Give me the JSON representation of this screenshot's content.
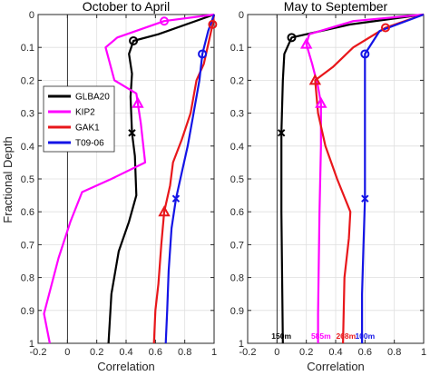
{
  "figure": {
    "ylabel": "Fractional Depth",
    "xlabel": "Correlation"
  },
  "chart_data": [
    {
      "type": "line",
      "title": "October to April",
      "xlabel": "Correlation",
      "ylabel": "Fractional Depth",
      "xlim": [
        -0.2,
        1
      ],
      "ylim": [
        0,
        1
      ],
      "y_reversed": true,
      "xticks": [
        "-0.2",
        "0",
        "0.2",
        "0.4",
        "0.6",
        "0.8",
        "1"
      ],
      "yticks": [
        "0",
        "0.1",
        "0.2",
        "0.3",
        "0.4",
        "0.5",
        "0.6",
        "0.7",
        "0.8",
        "0.9",
        "1"
      ],
      "grid": true,
      "legend": {
        "placement": "left",
        "entries": [
          "GLBA20",
          "KIP2",
          "GAK1",
          "T09-06"
        ]
      },
      "depth_labels": [],
      "series": [
        {
          "name": "GLBA20",
          "color": "#000000",
          "marker": "circle",
          "marker_y": 0.08,
          "marker2": "x",
          "marker2_y": 0.36,
          "points": [
            [
              1,
              0
            ],
            [
              0.62,
              0.06
            ],
            [
              0.45,
              0.08
            ],
            [
              0.42,
              0.12
            ],
            [
              0.44,
              0.18
            ],
            [
              0.43,
              0.25
            ],
            [
              0.44,
              0.36
            ],
            [
              0.46,
              0.43
            ],
            [
              0.47,
              0.55
            ],
            [
              0.42,
              0.63
            ],
            [
              0.35,
              0.72
            ],
            [
              0.3,
              0.85
            ],
            [
              0.28,
              1
            ]
          ]
        },
        {
          "name": "KIP2",
          "color": "#ff00ff",
          "marker": "circle",
          "marker_y": 0.02,
          "marker2": "triangle",
          "marker2_y": 0.27,
          "points": [
            [
              1,
              0
            ],
            [
              0.66,
              0.02
            ],
            [
              0.34,
              0.07
            ],
            [
              0.26,
              0.1
            ],
            [
              0.32,
              0.2
            ],
            [
              0.47,
              0.24
            ],
            [
              0.48,
              0.27
            ],
            [
              0.5,
              0.33
            ],
            [
              0.53,
              0.45
            ],
            [
              0.3,
              0.5
            ],
            [
              0.1,
              0.54
            ],
            [
              0.02,
              0.63
            ],
            [
              -0.06,
              0.74
            ],
            [
              -0.16,
              0.91
            ],
            [
              -0.12,
              1
            ]
          ]
        },
        {
          "name": "GAK1",
          "color": "#e8171b",
          "marker": "circle",
          "marker_y": 0.03,
          "marker2": "triangle",
          "marker2_y": 0.6,
          "points": [
            [
              1,
              0
            ],
            [
              0.99,
              0.03
            ],
            [
              0.93,
              0.15
            ],
            [
              0.88,
              0.2
            ],
            [
              0.84,
              0.3
            ],
            [
              0.78,
              0.38
            ],
            [
              0.72,
              0.45
            ],
            [
              0.7,
              0.52
            ],
            [
              0.66,
              0.6
            ],
            [
              0.64,
              0.7
            ],
            [
              0.62,
              0.82
            ],
            [
              0.6,
              0.9
            ],
            [
              0.59,
              1
            ]
          ]
        },
        {
          "name": "T09-06",
          "color": "#1414e6",
          "marker": "circle",
          "marker_y": 0.12,
          "marker2": "x",
          "marker2_y": 0.56,
          "points": [
            [
              1,
              0
            ],
            [
              0.96,
              0.05
            ],
            [
              0.92,
              0.12
            ],
            [
              0.9,
              0.2
            ],
            [
              0.86,
              0.3
            ],
            [
              0.82,
              0.4
            ],
            [
              0.77,
              0.5
            ],
            [
              0.74,
              0.56
            ],
            [
              0.71,
              0.65
            ],
            [
              0.69,
              0.78
            ],
            [
              0.68,
              0.9
            ],
            [
              0.67,
              1
            ]
          ]
        }
      ]
    },
    {
      "type": "line",
      "title": "May to September",
      "xlabel": "Correlation",
      "ylabel": "",
      "xlim": [
        -0.2,
        1
      ],
      "ylim": [
        0,
        1
      ],
      "y_reversed": true,
      "xticks": [
        "-0.2",
        "0",
        "0.2",
        "0.4",
        "0.6",
        "0.8",
        "1"
      ],
      "yticks": [
        "0",
        "0.1",
        "0.2",
        "0.3",
        "0.4",
        "0.5",
        "0.6",
        "0.7",
        "0.8",
        "0.9",
        "1"
      ],
      "grid": true,
      "legend": null,
      "depth_labels": [
        {
          "text": "150m",
          "color": "#000000"
        },
        {
          "text": "585m",
          "color": "#ff00ff"
        },
        {
          "text": "268m",
          "color": "#e8171b"
        },
        {
          "text": "100m",
          "color": "#1414e6"
        }
      ],
      "series": [
        {
          "name": "GLBA20",
          "color": "#000000",
          "marker": "circle",
          "marker_y": 0.07,
          "marker2": "x",
          "marker2_y": 0.36,
          "points": [
            [
              1,
              0
            ],
            [
              0.5,
              0.03
            ],
            [
              0.1,
              0.07
            ],
            [
              0.05,
              0.12
            ],
            [
              0.04,
              0.2
            ],
            [
              0.03,
              0.36
            ],
            [
              0.03,
              0.6
            ],
            [
              0.04,
              1
            ]
          ]
        },
        {
          "name": "KIP2",
          "color": "#ff00ff",
          "marker": "triangle",
          "marker_y": 0.09,
          "marker2": "triangle",
          "marker2_y": 0.27,
          "points": [
            [
              1,
              0
            ],
            [
              0.52,
              0.02
            ],
            [
              0.22,
              0.06
            ],
            [
              0.2,
              0.09
            ],
            [
              0.24,
              0.15
            ],
            [
              0.28,
              0.22
            ],
            [
              0.3,
              0.27
            ],
            [
              0.3,
              0.4
            ],
            [
              0.29,
              0.6
            ],
            [
              0.28,
              0.91
            ],
            [
              0.28,
              1
            ]
          ]
        },
        {
          "name": "GAK1",
          "color": "#e8171b",
          "marker": "circle",
          "marker_y": 0.04,
          "marker2": "triangle",
          "marker2_y": 0.2,
          "points": [
            [
              1,
              0
            ],
            [
              0.74,
              0.04
            ],
            [
              0.52,
              0.1
            ],
            [
              0.38,
              0.16
            ],
            [
              0.26,
              0.2
            ],
            [
              0.28,
              0.3
            ],
            [
              0.33,
              0.4
            ],
            [
              0.41,
              0.5
            ],
            [
              0.5,
              0.6
            ],
            [
              0.49,
              0.68
            ],
            [
              0.46,
              0.8
            ],
            [
              0.45,
              1
            ]
          ]
        },
        {
          "name": "T09-06",
          "color": "#1414e6",
          "marker": "circle",
          "marker_y": 0.12,
          "marker2": "x",
          "marker2_y": 0.56,
          "points": [
            [
              1,
              0
            ],
            [
              0.7,
              0.05
            ],
            [
              0.6,
              0.12
            ],
            [
              0.6,
              0.2
            ],
            [
              0.6,
              0.4
            ],
            [
              0.6,
              0.56
            ],
            [
              0.59,
              0.7
            ],
            [
              0.58,
              0.85
            ],
            [
              0.58,
              1
            ]
          ]
        }
      ]
    }
  ]
}
